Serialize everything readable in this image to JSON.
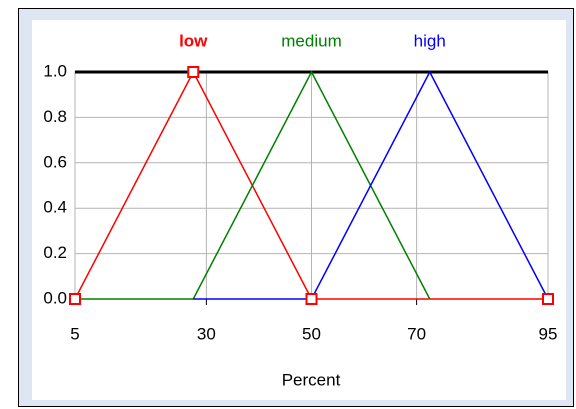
{
  "chart_data": {
    "type": "line",
    "xlabel": "Percent",
    "xlim": [
      5,
      95
    ],
    "xticks": [
      5,
      30,
      50,
      70,
      95
    ],
    "ylim": [
      0,
      1
    ],
    "yticks": [
      {
        "value": 0,
        "label": "0.0"
      },
      0.2,
      0.4,
      0.6,
      0.8,
      {
        "value": 1,
        "label": "1.0"
      }
    ],
    "grid": true,
    "series": [
      {
        "name": "low",
        "color": "#ff0000",
        "x": [
          5,
          27.5,
          50,
          95
        ],
        "values": [
          0,
          1,
          0,
          0
        ],
        "markers": true
      },
      {
        "name": "medium",
        "color": "#008000",
        "x": [
          5,
          27.5,
          50,
          72.5
        ],
        "values": [
          0,
          0,
          1,
          0
        ],
        "markers": false
      },
      {
        "name": "high",
        "color": "#0000ff",
        "x": [
          27.5,
          50,
          72.5,
          95
        ],
        "values": [
          0,
          0,
          1,
          0
        ],
        "markers": false
      }
    ]
  }
}
